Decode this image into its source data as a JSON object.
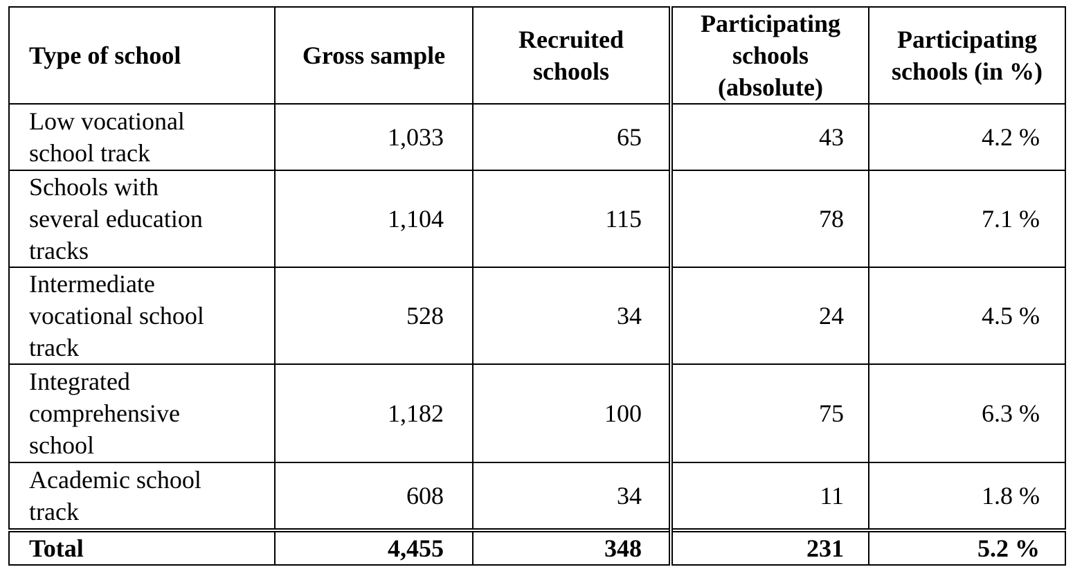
{
  "table": {
    "headers": [
      [
        "Type of school"
      ],
      [
        "Gross sample"
      ],
      [
        "Recruited",
        "schools"
      ],
      [
        "Participating",
        "schools",
        "(absolute)"
      ],
      [
        "Participating",
        "schools (in %)"
      ]
    ],
    "rows": [
      {
        "type": [
          "Low vocational",
          "school track"
        ],
        "gross": "1,033",
        "recruited": "65",
        "participating_abs": "43",
        "participating_pct": "4.2 %"
      },
      {
        "type": [
          "Schools with",
          "several education",
          "tracks"
        ],
        "gross": "1,104",
        "recruited": "115",
        "participating_abs": "78",
        "participating_pct": "7.1 %"
      },
      {
        "type": [
          "Intermediate",
          "vocational school",
          "track"
        ],
        "gross": "528",
        "recruited": "34",
        "participating_abs": "24",
        "participating_pct": "4.5 %"
      },
      {
        "type": [
          "Integrated",
          "comprehensive",
          "school"
        ],
        "gross": "1,182",
        "recruited": "100",
        "participating_abs": "75",
        "participating_pct": "6.3 %"
      },
      {
        "type": [
          "Academic school",
          "track"
        ],
        "gross": "608",
        "recruited": "34",
        "participating_abs": "11",
        "participating_pct": "1.8 %"
      }
    ],
    "total": {
      "type": "Total",
      "gross": "4,455",
      "recruited": "348",
      "participating_abs": "231",
      "participating_pct": "5.2 %"
    }
  }
}
